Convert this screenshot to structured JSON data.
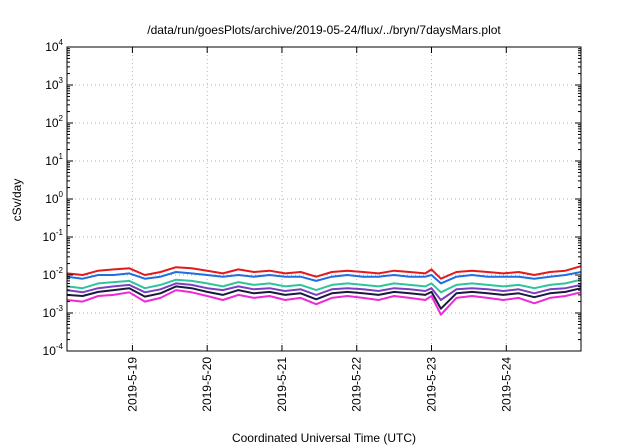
{
  "chart_data": {
    "type": "line",
    "title": "/data/run/goesPlots/archive/2019-05-24/flux/../bryn/7daysMars.plot",
    "xlabel": "Coordinated Universal Time (UTC)",
    "ylabel": "cSv/day",
    "yscale": "log",
    "ylim": [
      0.0001,
      10000
    ],
    "y_ticks": [
      {
        "base": "10",
        "exp": "4",
        "value": 10000
      },
      {
        "base": "10",
        "exp": "3",
        "value": 1000
      },
      {
        "base": "10",
        "exp": "2",
        "value": 100
      },
      {
        "base": "10",
        "exp": "1",
        "value": 10
      },
      {
        "base": "10",
        "exp": "0",
        "value": 1
      },
      {
        "base": "10",
        "exp": "-1",
        "value": 0.1
      },
      {
        "base": "10",
        "exp": "-2",
        "value": 0.01
      },
      {
        "base": "10",
        "exp": "-3",
        "value": 0.001
      },
      {
        "base": "10",
        "exp": "-4",
        "value": 0.0001
      }
    ],
    "x_start": "2019-05-18T03:00",
    "x_end": "2019-05-24T23:59",
    "x_ticks": [
      {
        "label": "2019-5-19",
        "value": "2019-05-19T00:00"
      },
      {
        "label": "2019-5-20",
        "value": "2019-05-20T00:00"
      },
      {
        "label": "2019-5-21",
        "value": "2019-05-21T00:00"
      },
      {
        "label": "2019-5-22",
        "value": "2019-05-22T00:00"
      },
      {
        "label": "2019-5-23",
        "value": "2019-05-23T00:00"
      },
      {
        "label": "2019-5-24",
        "value": "2019-05-24T00:00"
      }
    ],
    "grid": true,
    "series": [
      {
        "color": "#e31a1c",
        "x": [
          "2019-05-18T03:00",
          "2019-05-18T08:00",
          "2019-05-18T13:00",
          "2019-05-18T18:00",
          "2019-05-18T23:00",
          "2019-05-19T04:00",
          "2019-05-19T09:00",
          "2019-05-19T14:00",
          "2019-05-19T19:00",
          "2019-05-20T00:00",
          "2019-05-20T05:00",
          "2019-05-20T10:00",
          "2019-05-20T15:00",
          "2019-05-20T20:00",
          "2019-05-21T01:00",
          "2019-05-21T06:00",
          "2019-05-21T11:00",
          "2019-05-21T16:00",
          "2019-05-21T21:00",
          "2019-05-22T02:00",
          "2019-05-22T07:00",
          "2019-05-22T12:00",
          "2019-05-22T17:00",
          "2019-05-22T22:00",
          "2019-05-23T00:00",
          "2019-05-23T03:00",
          "2019-05-23T08:00",
          "2019-05-23T13:00",
          "2019-05-23T18:00",
          "2019-05-23T23:00",
          "2019-05-24T04:00",
          "2019-05-24T09:00",
          "2019-05-24T14:00",
          "2019-05-24T19:00",
          "2019-05-24T23:59"
        ],
        "values": [
          0.011,
          0.01,
          0.013,
          0.014,
          0.015,
          0.01,
          0.012,
          0.016,
          0.015,
          0.013,
          0.011,
          0.014,
          0.012,
          0.013,
          0.011,
          0.012,
          0.009,
          0.012,
          0.013,
          0.012,
          0.011,
          0.013,
          0.012,
          0.011,
          0.014,
          0.008,
          0.012,
          0.013,
          0.012,
          0.011,
          0.012,
          0.01,
          0.012,
          0.013,
          0.017
        ]
      },
      {
        "color": "#1f6fe0",
        "x": [
          "2019-05-18T03:00",
          "2019-05-18T08:00",
          "2019-05-18T13:00",
          "2019-05-18T18:00",
          "2019-05-18T23:00",
          "2019-05-19T04:00",
          "2019-05-19T09:00",
          "2019-05-19T14:00",
          "2019-05-19T19:00",
          "2019-05-20T00:00",
          "2019-05-20T05:00",
          "2019-05-20T10:00",
          "2019-05-20T15:00",
          "2019-05-20T20:00",
          "2019-05-21T01:00",
          "2019-05-21T06:00",
          "2019-05-21T11:00",
          "2019-05-21T16:00",
          "2019-05-21T21:00",
          "2019-05-22T02:00",
          "2019-05-22T07:00",
          "2019-05-22T12:00",
          "2019-05-22T17:00",
          "2019-05-22T22:00",
          "2019-05-23T00:00",
          "2019-05-23T03:00",
          "2019-05-23T08:00",
          "2019-05-23T13:00",
          "2019-05-23T18:00",
          "2019-05-23T23:00",
          "2019-05-24T04:00",
          "2019-05-24T09:00",
          "2019-05-24T14:00",
          "2019-05-24T19:00",
          "2019-05-24T23:59"
        ],
        "values": [
          0.009,
          0.008,
          0.01,
          0.01,
          0.011,
          0.008,
          0.009,
          0.012,
          0.011,
          0.01,
          0.009,
          0.01,
          0.009,
          0.01,
          0.009,
          0.009,
          0.007,
          0.009,
          0.01,
          0.009,
          0.009,
          0.01,
          0.009,
          0.009,
          0.01,
          0.006,
          0.009,
          0.01,
          0.009,
          0.009,
          0.009,
          0.008,
          0.009,
          0.01,
          0.012
        ]
      },
      {
        "color": "#2fc49a",
        "x": [
          "2019-05-18T03:00",
          "2019-05-18T08:00",
          "2019-05-18T13:00",
          "2019-05-18T18:00",
          "2019-05-18T23:00",
          "2019-05-19T04:00",
          "2019-05-19T09:00",
          "2019-05-19T14:00",
          "2019-05-19T19:00",
          "2019-05-20T00:00",
          "2019-05-20T05:00",
          "2019-05-20T10:00",
          "2019-05-20T15:00",
          "2019-05-20T20:00",
          "2019-05-21T01:00",
          "2019-05-21T06:00",
          "2019-05-21T11:00",
          "2019-05-21T16:00",
          "2019-05-21T21:00",
          "2019-05-22T02:00",
          "2019-05-22T07:00",
          "2019-05-22T12:00",
          "2019-05-22T17:00",
          "2019-05-22T22:00",
          "2019-05-23T00:00",
          "2019-05-23T03:00",
          "2019-05-23T08:00",
          "2019-05-23T13:00",
          "2019-05-23T18:00",
          "2019-05-23T23:00",
          "2019-05-24T04:00",
          "2019-05-24T09:00",
          "2019-05-24T14:00",
          "2019-05-24T19:00",
          "2019-05-24T23:59"
        ],
        "values": [
          0.005,
          0.0045,
          0.006,
          0.0065,
          0.007,
          0.0045,
          0.0055,
          0.0075,
          0.007,
          0.006,
          0.005,
          0.0065,
          0.0055,
          0.006,
          0.005,
          0.0055,
          0.004,
          0.0055,
          0.006,
          0.0055,
          0.005,
          0.006,
          0.0055,
          0.005,
          0.006,
          0.0035,
          0.0055,
          0.006,
          0.0055,
          0.005,
          0.0055,
          0.0045,
          0.0055,
          0.006,
          0.0075
        ]
      },
      {
        "color": "#7b3fbf",
        "x": [
          "2019-05-18T03:00",
          "2019-05-18T08:00",
          "2019-05-18T13:00",
          "2019-05-18T18:00",
          "2019-05-18T23:00",
          "2019-05-19T04:00",
          "2019-05-19T09:00",
          "2019-05-19T14:00",
          "2019-05-19T19:00",
          "2019-05-20T00:00",
          "2019-05-20T05:00",
          "2019-05-20T10:00",
          "2019-05-20T15:00",
          "2019-05-20T20:00",
          "2019-05-21T01:00",
          "2019-05-21T06:00",
          "2019-05-21T11:00",
          "2019-05-21T16:00",
          "2019-05-21T21:00",
          "2019-05-22T02:00",
          "2019-05-22T07:00",
          "2019-05-22T12:00",
          "2019-05-22T17:00",
          "2019-05-22T22:00",
          "2019-05-23T00:00",
          "2019-05-23T03:00",
          "2019-05-23T08:00",
          "2019-05-23T13:00",
          "2019-05-23T18:00",
          "2019-05-23T23:00",
          "2019-05-24T04:00",
          "2019-05-24T09:00",
          "2019-05-24T14:00",
          "2019-05-24T19:00",
          "2019-05-24T23:59"
        ],
        "values": [
          0.004,
          0.0035,
          0.0045,
          0.005,
          0.0055,
          0.0035,
          0.0042,
          0.006,
          0.0055,
          0.0045,
          0.004,
          0.005,
          0.0042,
          0.0045,
          0.0038,
          0.0042,
          0.003,
          0.0042,
          0.0045,
          0.0042,
          0.0038,
          0.0045,
          0.0042,
          0.0038,
          0.0045,
          0.0022,
          0.0042,
          0.0045,
          0.0042,
          0.0038,
          0.0042,
          0.0033,
          0.0042,
          0.0045,
          0.0055
        ]
      },
      {
        "color": "#1a1a40",
        "x": [
          "2019-05-18T03:00",
          "2019-05-18T08:00",
          "2019-05-18T13:00",
          "2019-05-18T18:00",
          "2019-05-18T23:00",
          "2019-05-19T04:00",
          "2019-05-19T09:00",
          "2019-05-19T14:00",
          "2019-05-19T19:00",
          "2019-05-20T00:00",
          "2019-05-20T05:00",
          "2019-05-20T10:00",
          "2019-05-20T15:00",
          "2019-05-20T20:00",
          "2019-05-21T01:00",
          "2019-05-21T06:00",
          "2019-05-21T11:00",
          "2019-05-21T16:00",
          "2019-05-21T21:00",
          "2019-05-22T02:00",
          "2019-05-22T07:00",
          "2019-05-22T12:00",
          "2019-05-22T17:00",
          "2019-05-22T22:00",
          "2019-05-23T00:00",
          "2019-05-23T03:00",
          "2019-05-23T08:00",
          "2019-05-23T13:00",
          "2019-05-23T18:00",
          "2019-05-23T23:00",
          "2019-05-24T04:00",
          "2019-05-24T09:00",
          "2019-05-24T14:00",
          "2019-05-24T19:00",
          "2019-05-24T23:59"
        ],
        "values": [
          0.003,
          0.0028,
          0.0036,
          0.004,
          0.0045,
          0.0027,
          0.0033,
          0.005,
          0.0045,
          0.0036,
          0.003,
          0.004,
          0.0033,
          0.0036,
          0.003,
          0.0033,
          0.0023,
          0.0033,
          0.0036,
          0.0033,
          0.003,
          0.0036,
          0.0033,
          0.003,
          0.0036,
          0.0013,
          0.0033,
          0.0036,
          0.0033,
          0.003,
          0.0033,
          0.0026,
          0.0033,
          0.0036,
          0.0045
        ]
      },
      {
        "color": "#ee2ad8",
        "x": [
          "2019-05-18T03:00",
          "2019-05-18T08:00",
          "2019-05-18T13:00",
          "2019-05-18T18:00",
          "2019-05-18T23:00",
          "2019-05-19T04:00",
          "2019-05-19T09:00",
          "2019-05-19T14:00",
          "2019-05-19T19:00",
          "2019-05-20T00:00",
          "2019-05-20T05:00",
          "2019-05-20T10:00",
          "2019-05-20T15:00",
          "2019-05-20T20:00",
          "2019-05-21T01:00",
          "2019-05-21T06:00",
          "2019-05-21T11:00",
          "2019-05-21T16:00",
          "2019-05-21T21:00",
          "2019-05-22T02:00",
          "2019-05-22T07:00",
          "2019-05-22T12:00",
          "2019-05-22T17:00",
          "2019-05-22T22:00",
          "2019-05-23T00:00",
          "2019-05-23T03:00",
          "2019-05-23T08:00",
          "2019-05-23T13:00",
          "2019-05-23T18:00",
          "2019-05-23T23:00",
          "2019-05-24T04:00",
          "2019-05-24T09:00",
          "2019-05-24T14:00",
          "2019-05-24T19:00",
          "2019-05-24T23:59"
        ],
        "values": [
          0.0022,
          0.002,
          0.0028,
          0.003,
          0.0035,
          0.002,
          0.0025,
          0.004,
          0.0035,
          0.0028,
          0.0022,
          0.003,
          0.0025,
          0.0028,
          0.0022,
          0.0025,
          0.0017,
          0.0025,
          0.0028,
          0.0025,
          0.0022,
          0.0028,
          0.0025,
          0.0022,
          0.0028,
          0.0009,
          0.0025,
          0.0028,
          0.0025,
          0.0022,
          0.0025,
          0.0018,
          0.0025,
          0.0028,
          0.0035
        ]
      }
    ]
  }
}
